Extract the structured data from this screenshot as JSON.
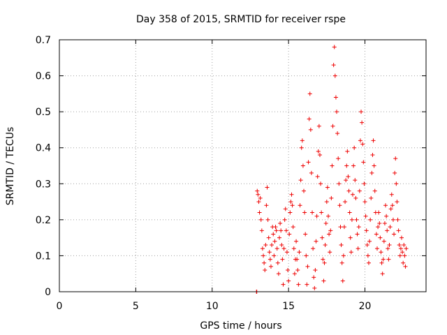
{
  "chart_data": {
    "type": "scatter",
    "title": "Day 358 of 2015, SRMTID for receiver rspe",
    "xlabel": "GPS time / hours",
    "ylabel": "SRMTID / TECUs",
    "xlim": [
      0,
      24
    ],
    "ylim": [
      0,
      0.7
    ],
    "xticks": [
      0,
      5,
      10,
      15,
      20
    ],
    "xtick_labels": [
      "0",
      "5",
      "10",
      "15",
      "20"
    ],
    "yticks": [
      0,
      0.1,
      0.2,
      0.3,
      0.4,
      0.5,
      0.6,
      0.7
    ],
    "ytick_labels": [
      "0",
      "0.1",
      "0.2",
      "0.3",
      "0.4",
      "0.5",
      "0.6",
      "0.7"
    ],
    "grid": true,
    "marker": "+",
    "series": [
      {
        "name": "SRMTID",
        "color": "#ee0000",
        "points": [
          [
            12.9,
            0.0
          ],
          [
            12.92,
            0.0
          ],
          [
            12.95,
            0.28
          ],
          [
            13.0,
            0.27
          ],
          [
            13.05,
            0.25
          ],
          [
            13.1,
            0.22
          ],
          [
            13.15,
            0.26
          ],
          [
            13.2,
            0.2
          ],
          [
            13.25,
            0.17
          ],
          [
            13.3,
            0.12
          ],
          [
            13.35,
            0.1
          ],
          [
            13.4,
            0.08
          ],
          [
            13.45,
            0.06
          ],
          [
            13.5,
            0.13
          ],
          [
            13.55,
            0.24
          ],
          [
            13.6,
            0.29
          ],
          [
            13.65,
            0.2
          ],
          [
            13.7,
            0.15
          ],
          [
            13.75,
            0.11
          ],
          [
            13.8,
            0.09
          ],
          [
            13.85,
            0.07
          ],
          [
            13.9,
            0.13
          ],
          [
            13.95,
            0.18
          ],
          [
            14.0,
            0.16
          ],
          [
            14.05,
            0.1
          ],
          [
            14.1,
            0.14
          ],
          [
            14.15,
            0.18
          ],
          [
            14.2,
            0.17
          ],
          [
            14.25,
            0.12
          ],
          [
            14.3,
            0.08
          ],
          [
            14.35,
            0.05
          ],
          [
            14.4,
            0.15
          ],
          [
            14.45,
            0.19
          ],
          [
            14.5,
            0.17
          ],
          [
            14.55,
            0.13
          ],
          [
            14.6,
            0.09
          ],
          [
            14.65,
            0.02
          ],
          [
            14.7,
            0.12
          ],
          [
            14.75,
            0.2
          ],
          [
            14.8,
            0.23
          ],
          [
            14.85,
            0.17
          ],
          [
            14.9,
            0.11
          ],
          [
            14.95,
            0.06
          ],
          [
            15.0,
            0.03
          ],
          [
            15.05,
            0.16
          ],
          [
            15.1,
            0.22
          ],
          [
            15.15,
            0.25
          ],
          [
            15.2,
            0.27
          ],
          [
            15.25,
            0.24
          ],
          [
            15.3,
            0.18
          ],
          [
            15.35,
            0.12
          ],
          [
            15.4,
            0.05
          ],
          [
            15.45,
            0.09
          ],
          [
            15.5,
            0.14
          ],
          [
            15.55,
            0.09
          ],
          [
            15.6,
            0.06
          ],
          [
            15.65,
            0.02
          ],
          [
            15.7,
            0.11
          ],
          [
            15.75,
            0.24
          ],
          [
            15.8,
            0.31
          ],
          [
            15.85,
            0.4
          ],
          [
            15.9,
            0.42
          ],
          [
            15.95,
            0.35
          ],
          [
            16.0,
            0.28
          ],
          [
            16.05,
            0.22
          ],
          [
            16.1,
            0.16
          ],
          [
            16.15,
            0.1
          ],
          [
            16.2,
            0.02
          ],
          [
            16.25,
            0.07
          ],
          [
            16.3,
            0.36
          ],
          [
            16.35,
            0.48
          ],
          [
            16.4,
            0.55
          ],
          [
            16.45,
            0.45
          ],
          [
            16.5,
            0.33
          ],
          [
            16.55,
            0.22
          ],
          [
            16.6,
            0.12
          ],
          [
            16.65,
            0.04
          ],
          [
            16.7,
            0.01
          ],
          [
            16.75,
            0.06
          ],
          [
            16.8,
            0.14
          ],
          [
            16.85,
            0.21
          ],
          [
            16.9,
            0.32
          ],
          [
            16.95,
            0.39
          ],
          [
            17.0,
            0.46
          ],
          [
            17.05,
            0.38
          ],
          [
            17.1,
            0.3
          ],
          [
            17.15,
            0.22
          ],
          [
            17.2,
            0.15
          ],
          [
            17.25,
            0.09
          ],
          [
            17.3,
            0.03
          ],
          [
            17.35,
            0.08
          ],
          [
            17.4,
            0.13
          ],
          [
            17.45,
            0.19
          ],
          [
            17.5,
            0.25
          ],
          [
            17.55,
            0.29
          ],
          [
            17.6,
            0.21
          ],
          [
            17.65,
            0.16
          ],
          [
            17.7,
            0.11
          ],
          [
            17.75,
            0.17
          ],
          [
            17.8,
            0.26
          ],
          [
            17.85,
            0.35
          ],
          [
            17.9,
            0.46
          ],
          [
            17.95,
            0.63
          ],
          [
            18.0,
            0.68
          ],
          [
            18.05,
            0.6
          ],
          [
            18.1,
            0.54
          ],
          [
            18.15,
            0.5
          ],
          [
            18.2,
            0.44
          ],
          [
            18.25,
            0.37
          ],
          [
            18.3,
            0.3
          ],
          [
            18.35,
            0.24
          ],
          [
            18.4,
            0.18
          ],
          [
            18.45,
            0.13
          ],
          [
            18.5,
            0.08
          ],
          [
            18.55,
            0.03
          ],
          [
            18.6,
            0.1
          ],
          [
            18.65,
            0.18
          ],
          [
            18.7,
            0.25
          ],
          [
            18.75,
            0.31
          ],
          [
            18.8,
            0.35
          ],
          [
            18.85,
            0.39
          ],
          [
            18.9,
            0.32
          ],
          [
            18.95,
            0.28
          ],
          [
            19.0,
            0.22
          ],
          [
            19.05,
            0.15
          ],
          [
            19.1,
            0.11
          ],
          [
            19.15,
            0.2
          ],
          [
            19.2,
            0.27
          ],
          [
            19.25,
            0.35
          ],
          [
            19.3,
            0.4
          ],
          [
            19.35,
            0.31
          ],
          [
            19.4,
            0.26
          ],
          [
            19.45,
            0.2
          ],
          [
            19.5,
            0.16
          ],
          [
            19.55,
            0.12
          ],
          [
            19.6,
            0.18
          ],
          [
            19.65,
            0.28
          ],
          [
            19.7,
            0.42
          ],
          [
            19.75,
            0.5
          ],
          [
            19.8,
            0.47
          ],
          [
            19.85,
            0.41
          ],
          [
            19.9,
            0.36
          ],
          [
            19.95,
            0.3
          ],
          [
            20.0,
            0.25
          ],
          [
            20.05,
            0.21
          ],
          [
            20.1,
            0.17
          ],
          [
            20.15,
            0.13
          ],
          [
            20.2,
            0.1
          ],
          [
            20.25,
            0.08
          ],
          [
            20.3,
            0.14
          ],
          [
            20.35,
            0.2
          ],
          [
            20.4,
            0.26
          ],
          [
            20.45,
            0.33
          ],
          [
            20.5,
            0.38
          ],
          [
            20.55,
            0.42
          ],
          [
            20.6,
            0.35
          ],
          [
            20.65,
            0.28
          ],
          [
            20.7,
            0.22
          ],
          [
            20.75,
            0.16
          ],
          [
            20.8,
            0.12
          ],
          [
            20.85,
            0.18
          ],
          [
            20.9,
            0.22
          ],
          [
            20.95,
            0.19
          ],
          [
            21.0,
            0.15
          ],
          [
            21.05,
            0.11
          ],
          [
            21.1,
            0.08
          ],
          [
            21.15,
            0.05
          ],
          [
            21.2,
            0.09
          ],
          [
            21.25,
            0.14
          ],
          [
            21.3,
            0.19
          ],
          [
            21.35,
            0.24
          ],
          [
            21.4,
            0.21
          ],
          [
            21.45,
            0.17
          ],
          [
            21.5,
            0.12
          ],
          [
            21.55,
            0.09
          ],
          [
            21.6,
            0.13
          ],
          [
            21.65,
            0.18
          ],
          [
            21.7,
            0.23
          ],
          [
            21.75,
            0.27
          ],
          [
            21.8,
            0.24
          ],
          [
            21.85,
            0.2
          ],
          [
            21.9,
            0.16
          ],
          [
            21.95,
            0.33
          ],
          [
            22.0,
            0.37
          ],
          [
            22.05,
            0.3
          ],
          [
            22.1,
            0.25
          ],
          [
            22.15,
            0.2
          ],
          [
            22.2,
            0.17
          ],
          [
            22.25,
            0.13
          ],
          [
            22.3,
            0.1
          ],
          [
            22.35,
            0.12
          ],
          [
            22.4,
            0.15
          ],
          [
            22.45,
            0.11
          ],
          [
            22.5,
            0.08
          ],
          [
            22.55,
            0.13
          ],
          [
            22.6,
            0.1
          ],
          [
            22.65,
            0.07
          ],
          [
            22.7,
            0.12
          ]
        ]
      }
    ]
  }
}
